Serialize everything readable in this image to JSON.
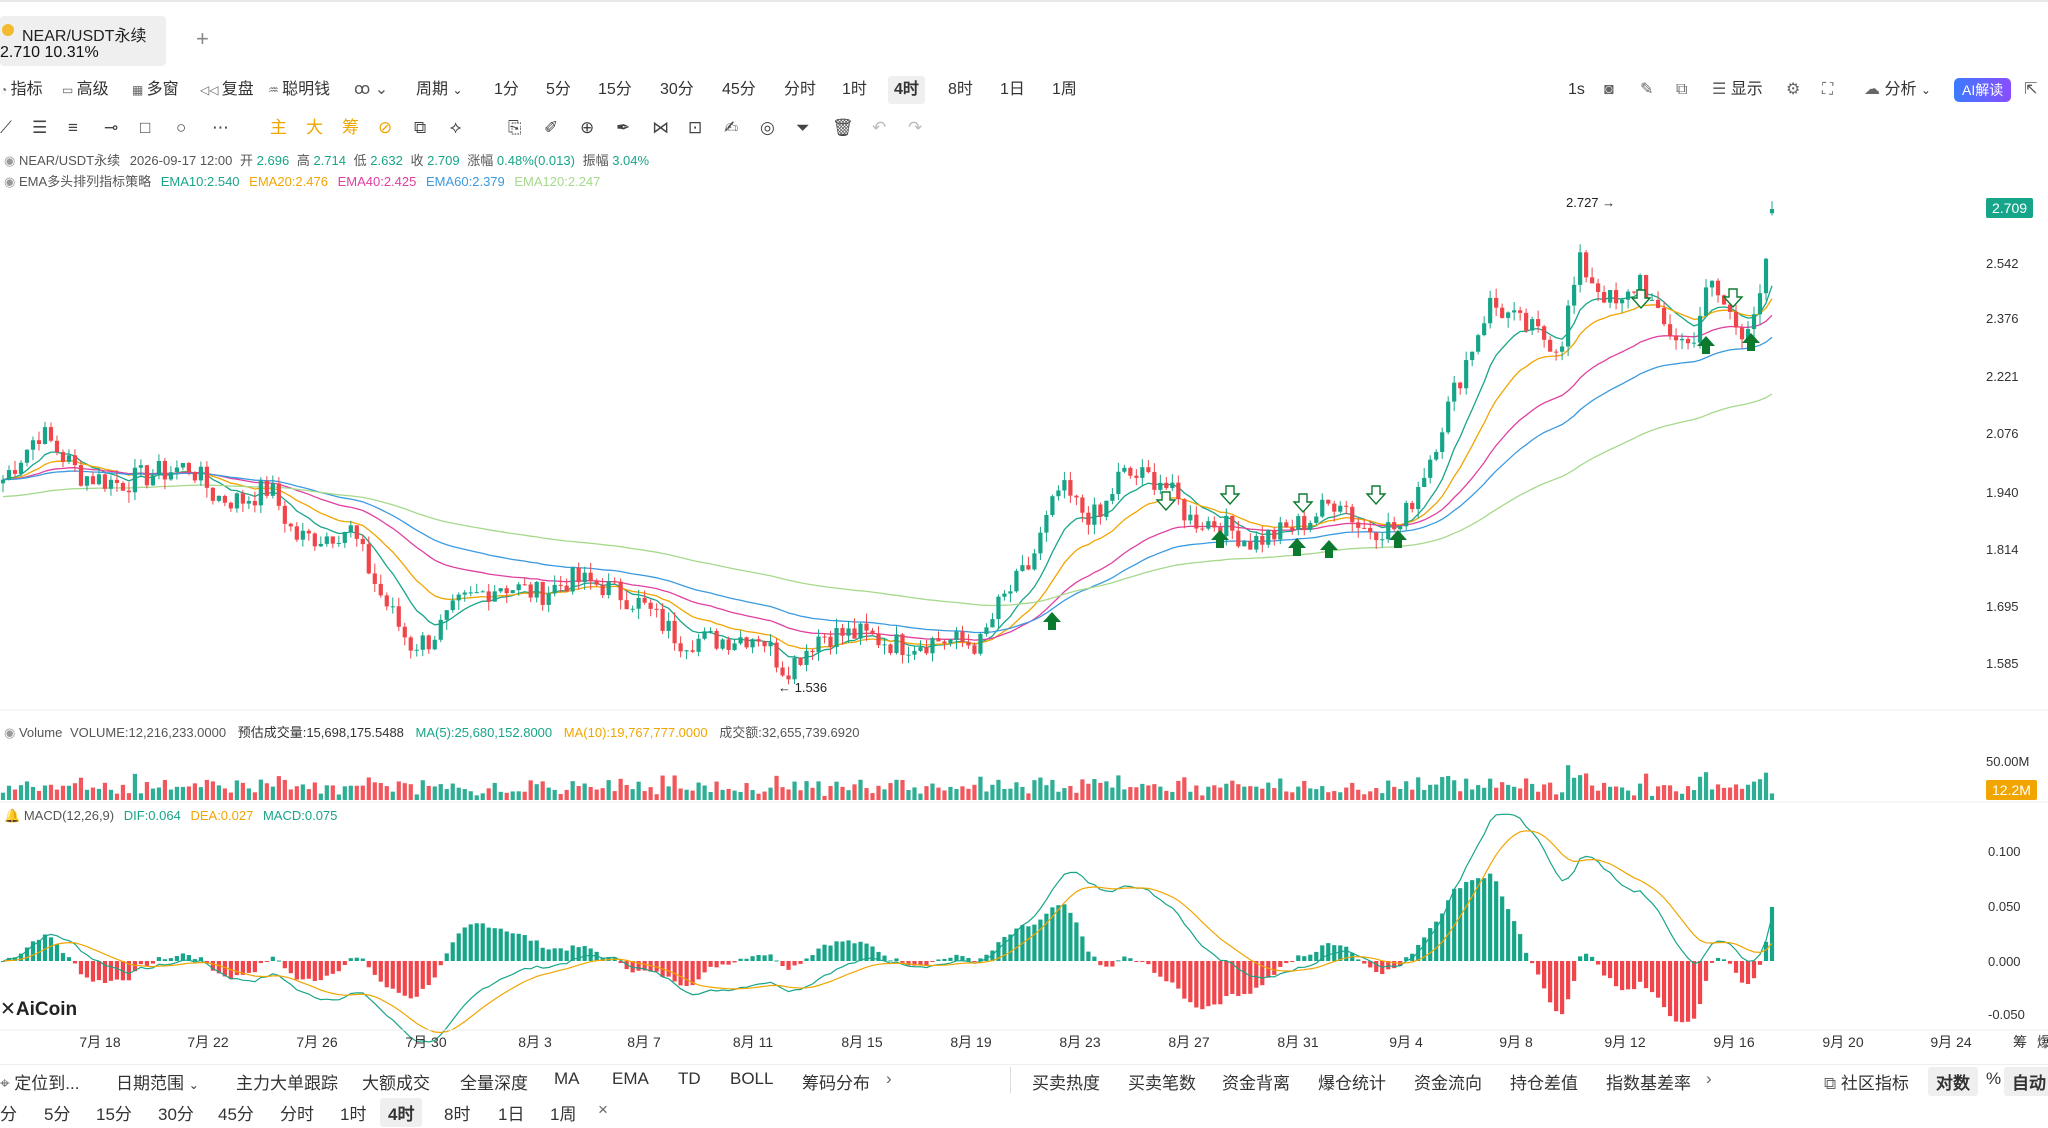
{
  "header": {
    "symbol_tab": "NEAR/USDT永续",
    "price_line": "2.710  10.31%",
    "add_tab": "+"
  },
  "toolbar": {
    "left": [
      "指标",
      "高级",
      "多窗",
      "复盘",
      "聪明钱",
      "周期"
    ],
    "periods": [
      "1分",
      "5分",
      "15分",
      "30分",
      "45分",
      "分时",
      "1时",
      "4时",
      "8时",
      "1日",
      "1周"
    ],
    "selected_period": "4时",
    "right": [
      "1s",
      "显示",
      "分析"
    ],
    "ai_button": "AI解读"
  },
  "drawing_tools": {
    "mode_labels": [
      "主",
      "大",
      "筹"
    ]
  },
  "legend": {
    "symbol": "NEAR/USDT永续",
    "datetime": "2026-09-17 12:00",
    "open_label": "开",
    "open": "2.696",
    "high_label": "高",
    "high": "2.714",
    "low_label": "低",
    "low": "2.632",
    "close_label": "收",
    "close": "2.709",
    "change_label": "涨幅",
    "change": "0.48%(0.013)",
    "amplitude_label": "振幅",
    "amplitude": "3.04%",
    "strategy": "EMA多头排列指标策略",
    "ema10": "EMA10:2.540",
    "ema20": "EMA20:2.476",
    "ema40": "EMA40:2.425",
    "ema60": "EMA60:2.379",
    "ema120": "EMA120:2.247"
  },
  "volume_legend": {
    "name": "Volume",
    "volume": "VOLUME:12,216,233.0000",
    "estimated": "预估成交量:15,698,175.5488",
    "ma5": "MA(5):25,680,152.8000",
    "ma10": "MA(10):19,767,777.0000",
    "turnover": "成交额:32,655,739.6920"
  },
  "macd_legend": {
    "name": "MACD(12,26,9)",
    "dif": "DIF:0.064",
    "dea": "DEA:0.027",
    "macd": "MACD:0.075"
  },
  "price_axis": [
    "2.542",
    "2.376",
    "2.221",
    "2.076",
    "1.940",
    "1.814",
    "1.695",
    "1.585"
  ],
  "current_price_tag": "2.709",
  "volume_axis": [
    "50.00M"
  ],
  "current_volume_tag": "12.2M",
  "macd_axis": [
    "0.100",
    "0.050",
    "0.000",
    "-0.050"
  ],
  "annotations": {
    "high_label": "2.727 →",
    "low_label": "← 1.536"
  },
  "watermark": "AiCoin",
  "x_axis": [
    "7月 18",
    "7月 22",
    "7月 26",
    "7月 30",
    "8月 3",
    "8月 7",
    "8月 11",
    "8月 15",
    "8月 19",
    "8月 23",
    "8月 27",
    "8月 31",
    "9月 4",
    "9月 8",
    "9月 12",
    "9月 16",
    "9月 20",
    "9月 24",
    "筹",
    "爆"
  ],
  "bottom_bar": {
    "left": [
      "定位到...",
      "日期范围"
    ],
    "indicators": [
      "主力大单跟踪",
      "大额成交",
      "全量深度",
      "MA",
      "EMA",
      "TD",
      "BOLL",
      "筹码分布"
    ],
    "data": [
      "买卖热度",
      "买卖笔数",
      "资金背离",
      "爆仓统计",
      "资金流向",
      "持仓差值",
      "指数基差率"
    ],
    "right": [
      "社区指标",
      "对数",
      "%",
      "自动"
    ]
  },
  "bottom_periods": [
    "分",
    "5分",
    "15分",
    "30分",
    "45分",
    "分时",
    "1时",
    "4时",
    "8时",
    "1日",
    "1周"
  ],
  "bottom_close": "×",
  "colors": {
    "up": "#17a589",
    "down": "#f0454a",
    "ema10": "#17a589",
    "ema20": "#f0a500",
    "ema40": "#e040a0",
    "ema60": "#3b9ae0",
    "ema120": "#a6d98c"
  }
}
